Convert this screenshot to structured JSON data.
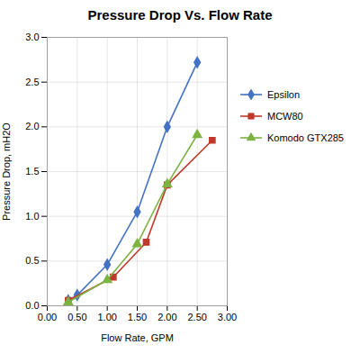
{
  "chart_data": {
    "type": "line",
    "title": "Pressure Drop Vs. Flow Rate",
    "xlabel": "Flow Rate, GPM",
    "ylabel": "Pressure Drop, mH2O",
    "xlim": [
      0.0,
      3.0
    ],
    "ylim": [
      0.0,
      3.0
    ],
    "xticks": [
      {
        "value": 0,
        "label": "0.00"
      },
      {
        "value": 0.5,
        "label": "0.50"
      },
      {
        "value": 1,
        "label": "1.00"
      },
      {
        "value": 1.5,
        "label": "1.50"
      },
      {
        "value": 2,
        "label": "2.00"
      },
      {
        "value": 2.5,
        "label": "2.50"
      },
      {
        "value": 3,
        "label": "3.00"
      }
    ],
    "yticks": [
      {
        "value": 0,
        "label": "0.0"
      },
      0.5,
      {
        "value": 1,
        "label": "1.0"
      },
      1.5,
      {
        "value": 2,
        "label": "2.0"
      },
      2.5,
      {
        "value": 3,
        "label": "3.0"
      }
    ],
    "grid": true,
    "legend": "right",
    "series": [
      {
        "name": "Epsilon",
        "color": "#4472C4",
        "marker": "diamond",
        "x": [
          0.35,
          0.5,
          1.0,
          1.5,
          2.0,
          2.5
        ],
        "values": [
          0.06,
          0.12,
          0.46,
          1.05,
          2.0,
          2.72
        ]
      },
      {
        "name": "MCW80",
        "color": "#C0392B",
        "marker": "square",
        "x": [
          0.35,
          1.1,
          1.65,
          2.0,
          2.75
        ],
        "values": [
          0.06,
          0.32,
          0.71,
          1.35,
          1.85
        ]
      },
      {
        "name": "Komodo GTX285",
        "color": "#7CB342",
        "marker": "triangle",
        "x": [
          0.35,
          1.0,
          1.5,
          2.0,
          2.5
        ],
        "values": [
          0.04,
          0.29,
          0.69,
          1.36,
          1.91
        ]
      }
    ]
  }
}
